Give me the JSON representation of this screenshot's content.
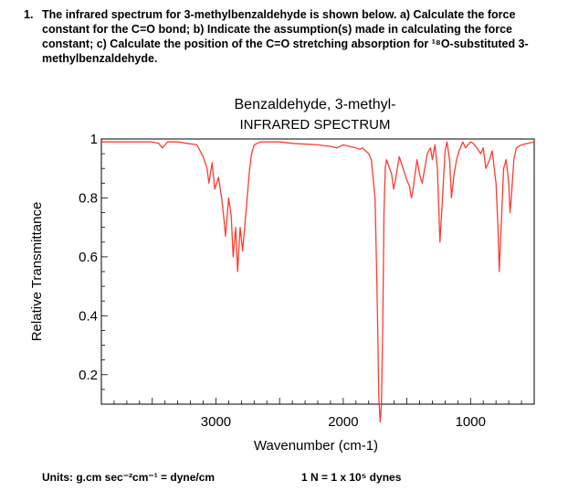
{
  "question": {
    "number": "1.",
    "text": "The infrared spectrum for 3-methylbenzaldehyde is shown below. a) Calculate the force constant for the C=O bond; b) Indicate the assumption(s) made in calculating the force constant; c) Calculate the position of the C=O stretching absorption for ¹⁸O-substituted 3-methylbenzaldehyde."
  },
  "footer": {
    "units": "Units:  g.cm sec⁻²cm⁻¹ = dyne/cm",
    "conversion": "1 N = 1 x 10⁵ dynes"
  },
  "colors": {
    "line": "#ff3b30",
    "axis": "#000000"
  },
  "chart_data": {
    "type": "line",
    "title": "Benzaldehyde, 3-methyl-",
    "subtitle": "INFRARED SPECTRUM",
    "xlabel": "Wavenumber (cm-1)",
    "ylabel": "Relative Transmittance",
    "xlim": [
      3900,
      500
    ],
    "ylim": [
      0.1,
      1.0
    ],
    "x_ticks": [
      3000,
      2000,
      1000
    ],
    "x_tick_labels": [
      "3000",
      "2000",
      "1000"
    ],
    "y_ticks": [
      1,
      0.8,
      0.6,
      0.4,
      0.2
    ],
    "y_tick_labels": [
      "1",
      "0.8",
      "0.6",
      "0.4",
      "0.2"
    ],
    "series": [
      {
        "x": [
          3900,
          3500,
          3450,
          3420,
          3380,
          3300,
          3150,
          3100,
          3070,
          3055,
          3030,
          3010,
          2980,
          2955,
          2935,
          2925,
          2900,
          2880,
          2865,
          2845,
          2830,
          2810,
          2790,
          2770,
          2735,
          2720,
          2700,
          2650,
          2500,
          2400,
          2200,
          2100,
          2050,
          2000,
          1950,
          1900,
          1870,
          1850,
          1800,
          1780,
          1750,
          1735,
          1720,
          1710,
          1700,
          1690,
          1680,
          1670,
          1660,
          1620,
          1605,
          1590,
          1560,
          1530,
          1500,
          1480,
          1465,
          1455,
          1440,
          1420,
          1400,
          1380,
          1360,
          1340,
          1315,
          1300,
          1280,
          1260,
          1240,
          1220,
          1200,
          1185,
          1165,
          1150,
          1130,
          1110,
          1090,
          1060,
          1040,
          1020,
          1000,
          980,
          950,
          920,
          900,
          880,
          850,
          830,
          800,
          785,
          775,
          760,
          740,
          720,
          700,
          690,
          680,
          660,
          640,
          600,
          550,
          500
        ],
        "y": [
          0.99,
          0.99,
          0.985,
          0.97,
          0.99,
          0.99,
          0.98,
          0.94,
          0.9,
          0.85,
          0.92,
          0.83,
          0.87,
          0.8,
          0.72,
          0.67,
          0.8,
          0.74,
          0.6,
          0.7,
          0.55,
          0.7,
          0.62,
          0.72,
          0.9,
          0.95,
          0.98,
          0.99,
          0.99,
          0.985,
          0.98,
          0.975,
          0.97,
          0.98,
          0.975,
          0.97,
          0.965,
          0.97,
          0.95,
          0.93,
          0.8,
          0.5,
          0.12,
          0.04,
          0.1,
          0.35,
          0.75,
          0.9,
          0.93,
          0.88,
          0.83,
          0.86,
          0.94,
          0.9,
          0.86,
          0.84,
          0.8,
          0.82,
          0.87,
          0.93,
          0.88,
          0.85,
          0.9,
          0.95,
          0.97,
          0.93,
          0.98,
          0.9,
          0.65,
          0.8,
          0.96,
          0.99,
          0.93,
          0.8,
          0.88,
          0.93,
          0.96,
          0.99,
          0.97,
          0.98,
          0.99,
          0.985,
          0.97,
          0.95,
          0.97,
          0.9,
          0.93,
          0.96,
          0.85,
          0.7,
          0.55,
          0.7,
          0.9,
          0.93,
          0.85,
          0.75,
          0.8,
          0.93,
          0.97,
          0.98,
          0.985,
          0.99
        ]
      }
    ],
    "grid": false,
    "legend": "none"
  }
}
